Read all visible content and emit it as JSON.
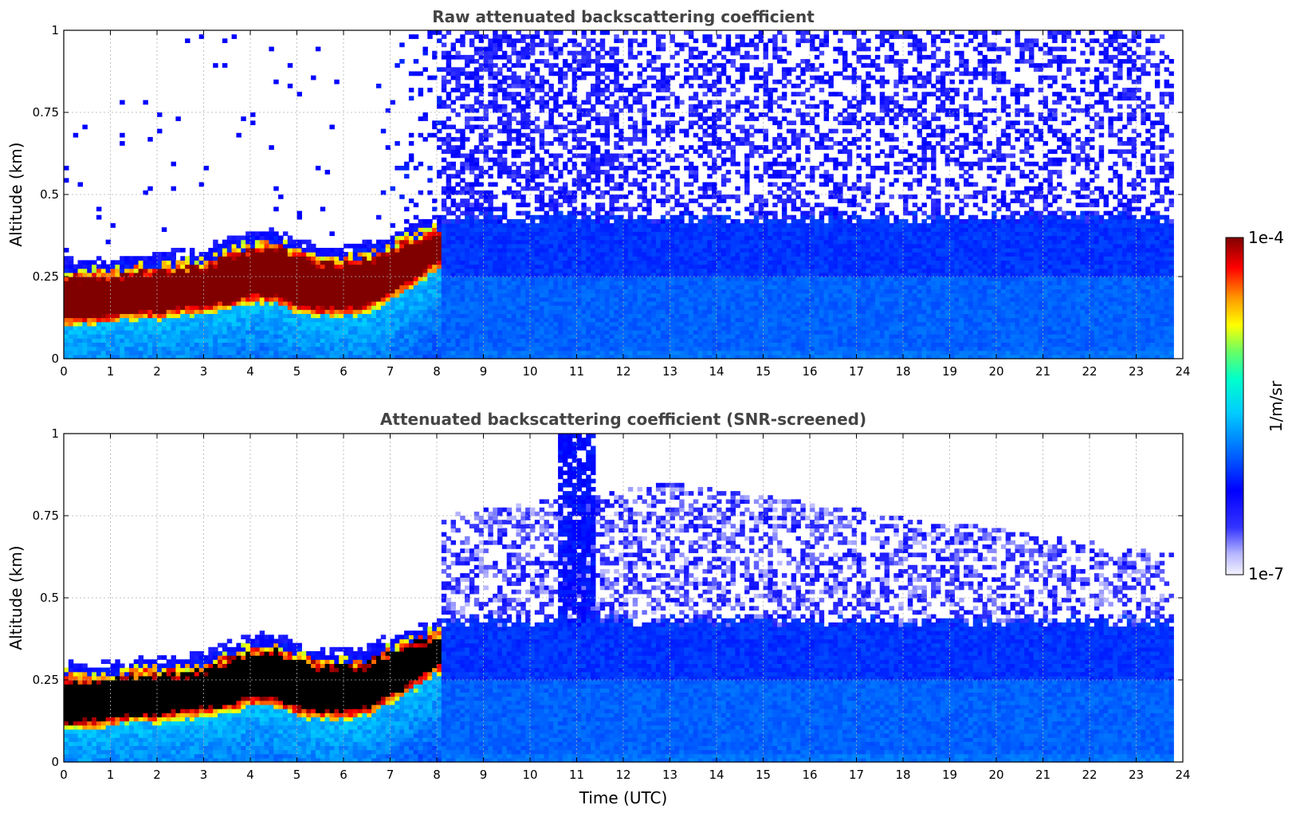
{
  "chart_data": [
    {
      "type": "heatmap",
      "title": "Raw attenuated backscattering coefficient",
      "xlabel": "",
      "ylabel": "Altitude (km)",
      "xlim": [
        0,
        24
      ],
      "ylim": [
        0,
        1
      ],
      "x_ticks": [
        "0",
        "1",
        "2",
        "3",
        "4",
        "5",
        "6",
        "7",
        "8",
        "9",
        "10",
        "11",
        "12",
        "13",
        "14",
        "15",
        "16",
        "17",
        "18",
        "19",
        "20",
        "21",
        "22",
        "23",
        "24"
      ],
      "y_ticks": [
        "0",
        "0.25",
        "0.5",
        "0.75",
        "1"
      ],
      "grid": true,
      "data_end_time": 23.8,
      "layer_profile": {
        "time": [
          0,
          0.5,
          1,
          1.5,
          2,
          2.5,
          3,
          3.5,
          4,
          4.5,
          5,
          5.5,
          6,
          6.5,
          7,
          7.5,
          8
        ],
        "base_km": [
          0.1,
          0.1,
          0.11,
          0.12,
          0.12,
          0.13,
          0.14,
          0.15,
          0.17,
          0.17,
          0.14,
          0.13,
          0.13,
          0.14,
          0.18,
          0.22,
          0.27
        ],
        "top_km": [
          0.27,
          0.27,
          0.27,
          0.28,
          0.29,
          0.29,
          0.3,
          0.33,
          0.35,
          0.36,
          0.33,
          0.31,
          0.31,
          0.32,
          0.35,
          0.38,
          0.4
        ]
      },
      "regime_change_time": 8.1,
      "noise_above_km": 0.43
    },
    {
      "type": "heatmap",
      "title": "Attenuated backscattering coefficient (SNR-screened)",
      "xlabel": "Time (UTC)",
      "ylabel": "Altitude (km)",
      "xlim": [
        0,
        24
      ],
      "ylim": [
        0,
        1
      ],
      "x_ticks": [
        "0",
        "1",
        "2",
        "3",
        "4",
        "5",
        "6",
        "7",
        "8",
        "9",
        "10",
        "11",
        "12",
        "13",
        "14",
        "15",
        "16",
        "17",
        "18",
        "19",
        "20",
        "21",
        "22",
        "23",
        "24"
      ],
      "y_ticks": [
        "0",
        "0.25",
        "0.5",
        "0.75",
        "1"
      ],
      "grid": true,
      "data_end_time": 23.8,
      "saturated_color": "#000000",
      "plume_time_range": [
        10.6,
        11.4
      ]
    }
  ],
  "colorbar": {
    "label": "1/m/sr",
    "max_label": "1e-4",
    "min_label": "1e-7",
    "scale": "log",
    "colormap": "jet",
    "colors": [
      "#eeeeff",
      "#ccccff",
      "#7777ff",
      "#0000ff",
      "#0066ff",
      "#00ccff",
      "#00ffcc",
      "#66ff66",
      "#ffff00",
      "#ff9900",
      "#ff0000",
      "#800000"
    ]
  }
}
